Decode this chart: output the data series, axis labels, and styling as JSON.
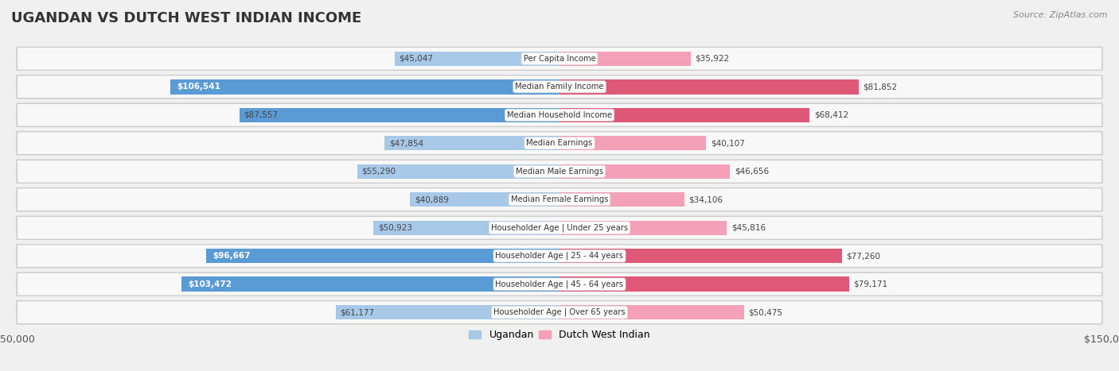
{
  "title": "UGANDAN VS DUTCH WEST INDIAN INCOME",
  "source": "Source: ZipAtlas.com",
  "categories": [
    "Per Capita Income",
    "Median Family Income",
    "Median Household Income",
    "Median Earnings",
    "Median Male Earnings",
    "Median Female Earnings",
    "Householder Age | Under 25 years",
    "Householder Age | 25 - 44 years",
    "Householder Age | 45 - 64 years",
    "Householder Age | Over 65 years"
  ],
  "ugandan": [
    45047,
    106541,
    87557,
    47854,
    55290,
    40889,
    50923,
    96667,
    103472,
    61177
  ],
  "dutch_west_indian": [
    35922,
    81852,
    68412,
    40107,
    46656,
    34106,
    45816,
    77260,
    79171,
    50475
  ],
  "ugandan_labels": [
    "$45,047",
    "$106,541",
    "$87,557",
    "$47,854",
    "$55,290",
    "$40,889",
    "$50,923",
    "$96,667",
    "$103,472",
    "$61,177"
  ],
  "dutch_labels": [
    "$35,922",
    "$81,852",
    "$68,412",
    "$40,107",
    "$46,656",
    "$34,106",
    "$45,816",
    "$77,260",
    "$79,171",
    "$50,475"
  ],
  "ugandan_color_light": "#a8c8e8",
  "ugandan_color_dark": "#5b9bd5",
  "dutch_color_light": "#f4a0b8",
  "dutch_color_dark": "#e05878",
  "white_label_ugandan_indices": [
    1,
    7,
    8
  ],
  "white_label_dutch_indices": [
    1,
    2,
    7,
    8
  ],
  "max_val": 150000,
  "legend_ugandan": "Ugandan",
  "legend_dutch": "Dutch West Indian",
  "bar_height": 0.52,
  "fig_bg": "#f0f0f0",
  "row_bg_outer": "#d8d8d8",
  "row_bg_inner": "#ffffff"
}
